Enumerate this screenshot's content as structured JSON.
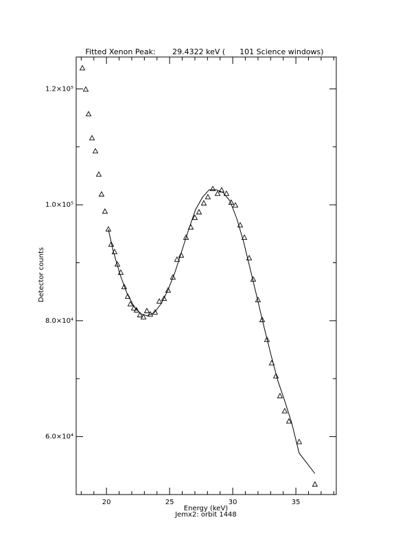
{
  "chart_data": {
    "type": "scatter",
    "title": "Fitted Xenon Peak:       29.4322 keV (      101 Science windows)",
    "x_label": "Energy (keV)",
    "y_label": "Detector counts",
    "subtitle": "Jemx2: orbit 1448",
    "xlim": [
      17.6,
      38.2
    ],
    "ylim": [
      50000,
      125500
    ],
    "xticks": [
      20,
      25,
      30,
      35
    ],
    "xminorticks": [
      18,
      19,
      21,
      22,
      23,
      24,
      26,
      27,
      28,
      29,
      31,
      32,
      33,
      34,
      36,
      37,
      38
    ],
    "yticks": [
      {
        "value": 60000,
        "label": "6.0×10⁴"
      },
      {
        "value": 80000,
        "label": "8.0×10⁴"
      },
      {
        "value": 100000,
        "label": "1.0×10⁵"
      },
      {
        "value": 120000,
        "label": "1.2×10⁵"
      }
    ],
    "yminorticks": [
      70000,
      90000,
      110000
    ],
    "color": "#000000",
    "points": {
      "x": [
        18.09,
        18.36,
        18.58,
        18.85,
        19.12,
        19.39,
        19.61,
        19.88,
        20.15,
        20.37,
        20.64,
        20.86,
        21.13,
        21.4,
        21.68,
        21.89,
        22.17,
        22.38,
        22.65,
        22.93,
        23.2,
        23.47,
        23.85,
        24.18,
        24.56,
        24.88,
        25.26,
        25.59,
        25.92,
        26.3,
        26.68,
        27.0,
        27.33,
        27.71,
        28.03,
        28.42,
        28.8,
        29.12,
        29.5,
        29.88,
        30.21,
        30.59,
        30.92,
        31.3,
        31.62,
        32.0,
        32.33,
        32.71,
        33.09,
        33.42,
        33.74,
        34.12,
        34.45,
        35.26,
        36.51
      ],
      "values": [
        123550,
        119880,
        115620,
        111480,
        109230,
        105210,
        101780,
        98820,
        95740,
        93140,
        91830,
        89700,
        88280,
        85800,
        84140,
        82840,
        82130,
        81780,
        80950,
        80590,
        81660,
        81070,
        81420,
        83310,
        83790,
        85210,
        87460,
        90530,
        91240,
        94320,
        96090,
        97750,
        98700,
        100240,
        101300,
        102720,
        101890,
        102490,
        101890,
        100360,
        99880,
        96450,
        94320,
        90770,
        87100,
        83550,
        80120,
        76690,
        72660,
        70410,
        66980,
        64380,
        62610,
        59060,
        51720
      ]
    },
    "fit": {
      "x": [
        20.15,
        20.53,
        21.08,
        21.62,
        22.17,
        22.71,
        23.25,
        23.8,
        24.34,
        24.88,
        25.43,
        25.97,
        26.51,
        27.06,
        27.6,
        28.14,
        28.69,
        29.23,
        29.77,
        30.32,
        30.86,
        31.4,
        31.95,
        32.49,
        33.03,
        33.58,
        34.12,
        34.67,
        35.26,
        36.51
      ],
      "values": [
        95740,
        92070,
        87930,
        84730,
        82490,
        81190,
        80830,
        81420,
        82960,
        85330,
        88400,
        92070,
        95740,
        99170,
        101300,
        102600,
        102600,
        102130,
        100710,
        97630,
        93610,
        88760,
        83790,
        78820,
        74090,
        69590,
        66140,
        62340,
        57160,
        53610
      ]
    }
  }
}
